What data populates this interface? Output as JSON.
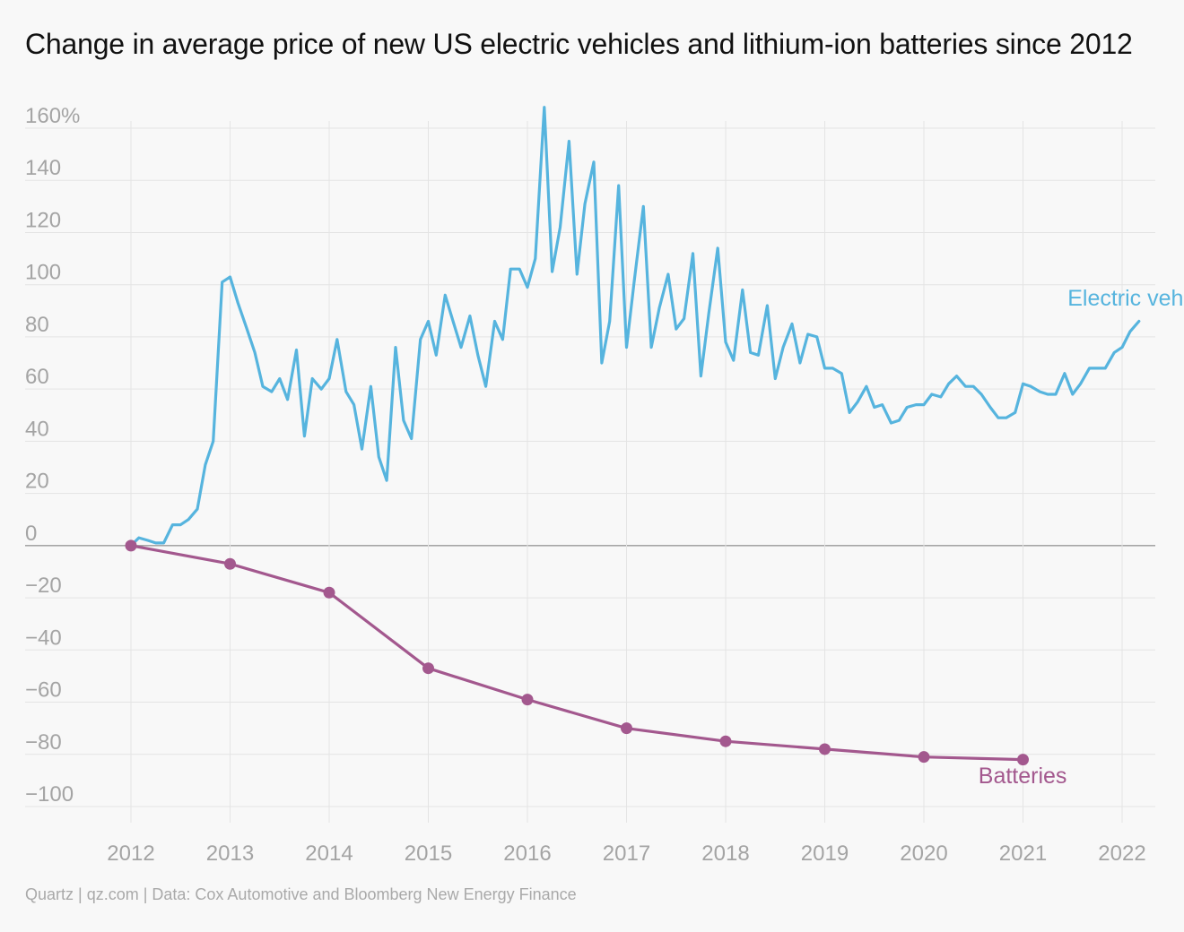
{
  "title": "Change in average price of new US electric vehicles and lithium-ion batteries since 2012",
  "source": "Quartz | qz.com | Data: Cox Automotive and Bloomberg New Energy Finance",
  "colors": {
    "background": "#f8f8f8",
    "grid": "#e4e4e4",
    "zero_line": "#9a9a9a",
    "tick_text": "#a4a4a4",
    "ev": "#56b4de",
    "batteries": "#a3588e"
  },
  "chart_data": {
    "type": "line",
    "title": "Change in average price of new US electric vehicles and lithium-ion batteries since 2012",
    "xlim": [
      2012,
      2022.2
    ],
    "ylim": [
      -100,
      160
    ],
    "x_ticks": [
      2012,
      2013,
      2014,
      2015,
      2016,
      2017,
      2018,
      2019,
      2020,
      2021,
      2022
    ],
    "x_tick_labels": [
      "2012",
      "2013",
      "2014",
      "2015",
      "2016",
      "2017",
      "2018",
      "2019",
      "2020",
      "2021",
      "2022"
    ],
    "y_ticks": [
      160,
      140,
      120,
      100,
      80,
      60,
      40,
      20,
      0,
      -20,
      -40,
      -60,
      -80,
      -100
    ],
    "y_tick_labels": [
      "160%",
      "140",
      "120",
      "100",
      "80",
      "60",
      "40",
      "20",
      "0",
      "−20",
      "−40",
      "−60",
      "−80",
      "−100"
    ],
    "grid": true,
    "series": [
      {
        "name": "Electric vehicles",
        "color": "#56b4de",
        "markers": false,
        "x": [
          2012.0,
          2012.08,
          2012.17,
          2012.25,
          2012.33,
          2012.42,
          2012.5,
          2012.58,
          2012.67,
          2012.75,
          2012.83,
          2012.92,
          2013.0,
          2013.08,
          2013.17,
          2013.25,
          2013.33,
          2013.42,
          2013.5,
          2013.58,
          2013.67,
          2013.75,
          2013.83,
          2013.92,
          2014.0,
          2014.08,
          2014.17,
          2014.25,
          2014.33,
          2014.42,
          2014.5,
          2014.58,
          2014.67,
          2014.75,
          2014.83,
          2014.92,
          2015.0,
          2015.08,
          2015.17,
          2015.25,
          2015.33,
          2015.42,
          2015.5,
          2015.58,
          2015.67,
          2015.75,
          2015.83,
          2015.92,
          2016.0,
          2016.08,
          2016.17,
          2016.25,
          2016.33,
          2016.42,
          2016.5,
          2016.58,
          2016.67,
          2016.75,
          2016.83,
          2016.92,
          2017.0,
          2017.08,
          2017.17,
          2017.25,
          2017.33,
          2017.42,
          2017.5,
          2017.58,
          2017.67,
          2017.75,
          2017.83,
          2017.92,
          2018.0,
          2018.08,
          2018.17,
          2018.25,
          2018.33,
          2018.42,
          2018.5,
          2018.58,
          2018.67,
          2018.75,
          2018.83,
          2018.92,
          2019.0,
          2019.08,
          2019.17,
          2019.25,
          2019.33,
          2019.42,
          2019.5,
          2019.58,
          2019.67,
          2019.75,
          2019.83,
          2019.92,
          2020.0,
          2020.08,
          2020.17,
          2020.25,
          2020.33,
          2020.42,
          2020.5,
          2020.58,
          2020.67,
          2020.75,
          2020.83,
          2020.92,
          2021.0,
          2021.08,
          2021.17,
          2021.25,
          2021.33,
          2021.42,
          2021.5,
          2021.58,
          2021.67,
          2021.75,
          2021.83,
          2021.92,
          2022.0,
          2022.08,
          2022.17
        ],
        "y": [
          0,
          3,
          2,
          1,
          1,
          8,
          8,
          10,
          14,
          31,
          40,
          101,
          103,
          93,
          83,
          74,
          61,
          59,
          64,
          56,
          75,
          42,
          64,
          60,
          64,
          79,
          59,
          54,
          37,
          61,
          34,
          25,
          76,
          48,
          41,
          79,
          86,
          73,
          96,
          86,
          76,
          88,
          73,
          61,
          86,
          79,
          106,
          106,
          99,
          110,
          168,
          105,
          122,
          155,
          104,
          131,
          147,
          70,
          86,
          138,
          76,
          102,
          130,
          76,
          91,
          104,
          83,
          87,
          112,
          65,
          89,
          114,
          78,
          71,
          98,
          74,
          73,
          92,
          64,
          76,
          85,
          70,
          81,
          80,
          68,
          68,
          66,
          51,
          55,
          61,
          53,
          54,
          47,
          48,
          53,
          54,
          54,
          58,
          57,
          62,
          65,
          61,
          61,
          58,
          53,
          49,
          49,
          51,
          62,
          61,
          59,
          58,
          58,
          66,
          58,
          62,
          68,
          68,
          68,
          74,
          76,
          82,
          86
        ]
      },
      {
        "name": "Batteries",
        "color": "#a3588e",
        "markers": true,
        "x": [
          2012,
          2013,
          2014,
          2015,
          2016,
          2017,
          2018,
          2019,
          2020,
          2021
        ],
        "y": [
          0,
          -7,
          -18,
          -47,
          -59,
          -70,
          -75,
          -78,
          -81,
          -82
        ]
      }
    ],
    "annotations": [
      {
        "text": "Electric vehicles",
        "series": "Electric vehicles",
        "x": 2021.45,
        "y": 92
      },
      {
        "text": "Batteries",
        "series": "Batteries",
        "x": 2020.55,
        "y": -91
      }
    ]
  }
}
